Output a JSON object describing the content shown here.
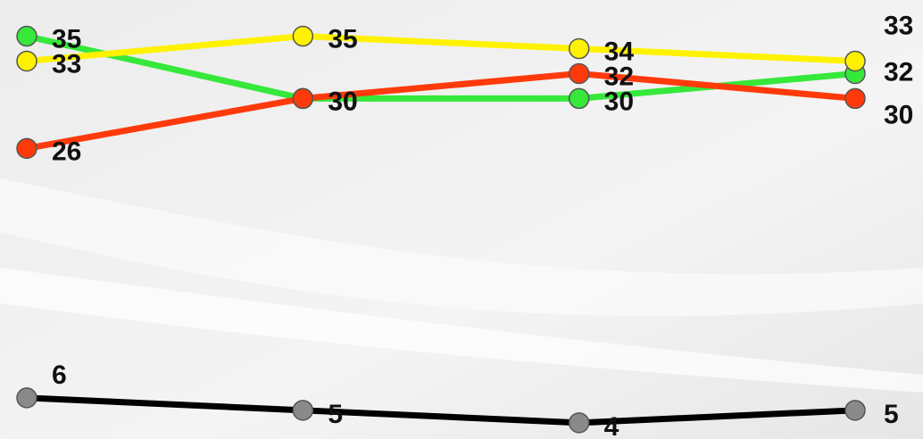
{
  "chart_data": {
    "type": "line",
    "categories": [
      null,
      null,
      null,
      null
    ],
    "ylim": [
      2.7,
      37.9
    ],
    "series": [
      {
        "name": null,
        "color": "#36e83a",
        "values": [
          35,
          30,
          30,
          32
        ]
      },
      {
        "name": null,
        "color": "#fff200",
        "values": [
          33,
          35,
          34,
          33
        ]
      },
      {
        "name": null,
        "color": "#ff3a0a",
        "values": [
          26,
          30,
          32,
          30
        ]
      },
      {
        "name": null,
        "color": "#000000",
        "marker": "#8a8a8a",
        "values": [
          6,
          5,
          4,
          5
        ]
      }
    ]
  }
}
